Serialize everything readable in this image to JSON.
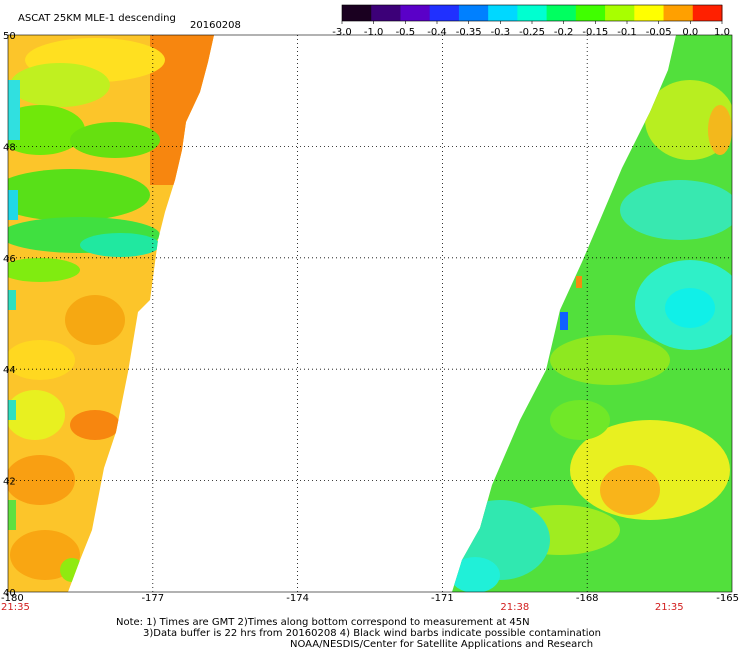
{
  "title": "ASCAT 25KM MLE-1 descending",
  "date": "20160208",
  "colorbar": {
    "tick_labels": [
      "-3.0",
      "-1.0",
      "-0.5",
      "-0.4",
      "-0.35",
      "-0.3",
      "-0.25",
      "-0.2",
      "-0.15",
      "-0.1",
      "-0.05",
      "0.0",
      "1.0"
    ],
    "colors": [
      "#1a0020",
      "#3c0078",
      "#5a00c8",
      "#2030ff",
      "#0080ff",
      "#00d8ff",
      "#00ffd0",
      "#00ff60",
      "#40ff00",
      "#a8ff00",
      "#ffff00",
      "#ffa000",
      "#ff2000"
    ]
  },
  "map": {
    "lon_range": [
      -180,
      -165
    ],
    "lat_range": [
      40,
      50
    ],
    "x_ticks": [
      "-180",
      "-177",
      "-174",
      "-171",
      "-168",
      "-165"
    ],
    "y_ticks": [
      "40",
      "42",
      "44",
      "46",
      "48",
      "50"
    ],
    "time_labels": [
      {
        "text": "21:35",
        "lon": -180
      },
      {
        "text": "21:38",
        "lon": -169.5
      },
      {
        "text": "21:35",
        "lon": -166.3
      }
    ]
  },
  "notes": [
    "Note: 1) Times are GMT 2)Times along bottom correspond to measurement at 45N",
    "3)Data buffer is 22 hrs from 20160208 4) Black wind barbs indicate possible contamination",
    "NOAA/NESDIS/Center for Satellite Applications and Research"
  ]
}
